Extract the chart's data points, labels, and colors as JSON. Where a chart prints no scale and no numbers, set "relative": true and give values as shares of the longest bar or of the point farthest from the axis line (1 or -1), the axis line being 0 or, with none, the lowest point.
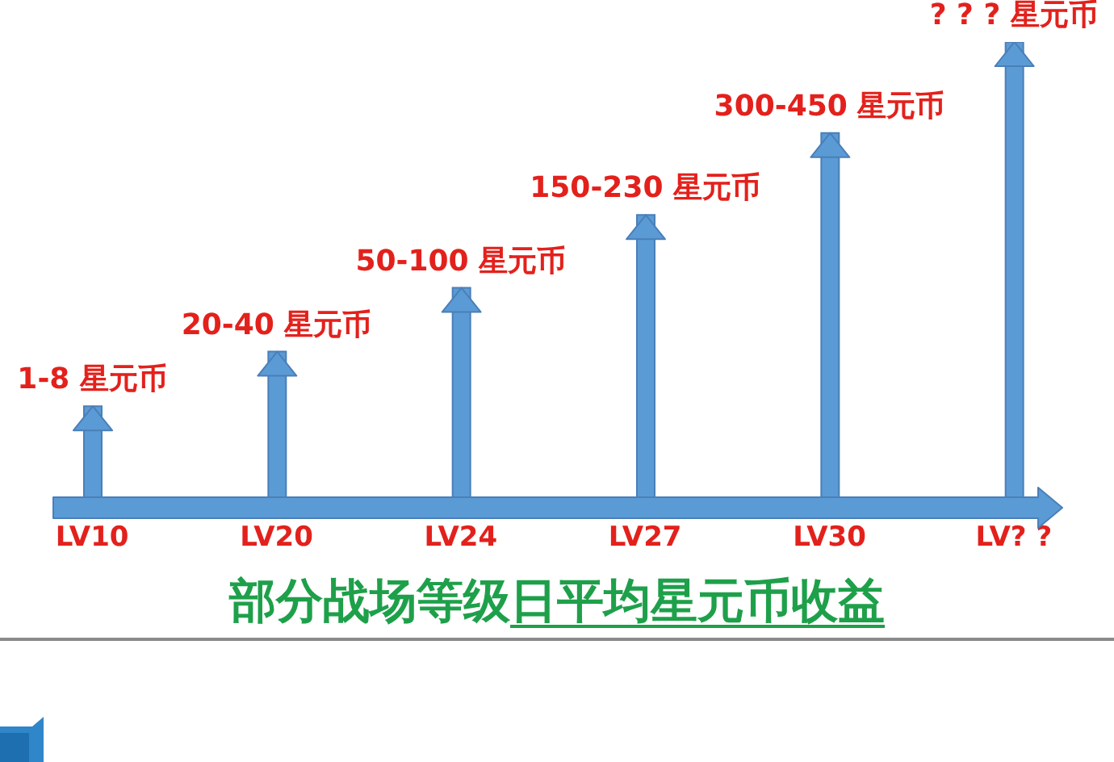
{
  "chart_data": {
    "type": "bar",
    "title": "部分战场等级日平均星元币收益",
    "relative": true,
    "color": "#5b9bd5",
    "categories": [
      "LV10",
      "LV20",
      "LV24",
      "LV27",
      "LV30",
      "LV? ?"
    ],
    "values": [
      0.2,
      0.32,
      0.46,
      0.62,
      0.8,
      1
    ],
    "annotations": [
      {
        "text": "1-8 星元币",
        "x": "LV10",
        "y": 0.2
      },
      {
        "text": "20-40 星元币",
        "x": "LV20",
        "y": 0.32
      },
      {
        "text": "50-100 星元币",
        "x": "LV24",
        "y": 0.46
      },
      {
        "text": "150-230 星元币",
        "x": "LV27",
        "y": 0.62
      },
      {
        "text": "300-450 星元币",
        "x": "LV30",
        "y": 0.8
      },
      {
        "text": "? ? ? 星元币",
        "x": "LV? ?",
        "y": 1
      }
    ]
  }
}
